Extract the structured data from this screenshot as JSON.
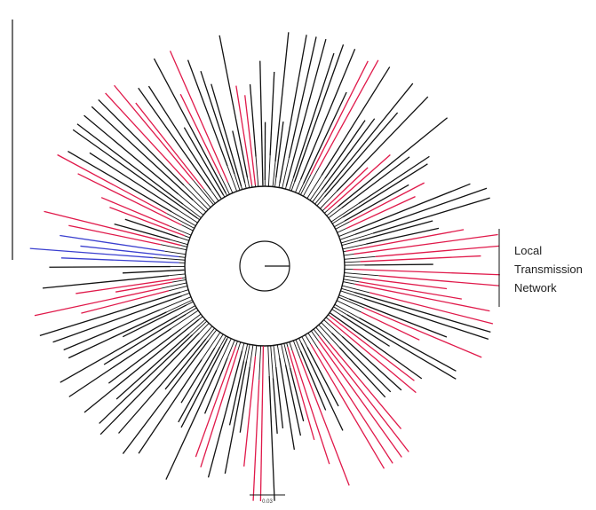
{
  "figure": {
    "annotation_lines": [
      "Local",
      "Transmission",
      "Network"
    ],
    "scale_bar_label": "0.03"
  },
  "legend_colors": {
    "default_branch": "#111111",
    "highlighted_branch": "#e0194a",
    "outgroup_branch": "#3a3fcf"
  }
}
